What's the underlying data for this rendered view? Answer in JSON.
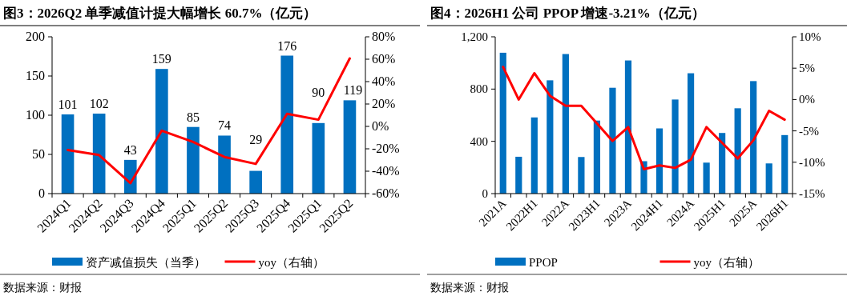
{
  "chart_data": [
    {
      "type": "bar",
      "title": "图3：2026Q2 单季减值计提大幅增长 60.7%（亿元）",
      "categories": [
        "2024Q1",
        "2024Q2",
        "2024Q3",
        "2024Q4",
        "2025Q1",
        "2025Q2",
        "2025Q3",
        "2025Q4",
        "2025Q1",
        "2025Q2"
      ],
      "series": [
        {
          "name": "资产减值损失（当季）",
          "color": "#0070c0",
          "values": [
            101,
            102,
            43,
            159,
            85,
            74,
            29,
            176,
            90,
            119
          ],
          "value_labels": [
            "101",
            "102",
            "43",
            "159",
            "85",
            "74",
            "29",
            "176",
            "90",
            "119"
          ]
        },
        {
          "name": "yoy（右轴）",
          "type": "line",
          "axis": "y2",
          "color": "#ff0000",
          "values": [
            -21,
            -25.6,
            -50.7,
            -3.8,
            -13.9,
            -27.3,
            -33.5,
            11.2,
            6,
            60.7
          ]
        }
      ],
      "ylim": [
        0,
        200
      ],
      "yticks": [
        0,
        50,
        100,
        150,
        200
      ],
      "y2lim": [
        -60,
        80
      ],
      "y2ticks": [
        {
          "value": -60,
          "label": "-60%"
        },
        {
          "value": -40,
          "label": "-40%"
        },
        {
          "value": -20,
          "label": "-20%"
        },
        {
          "value": 0,
          "label": "0%"
        },
        {
          "value": 20,
          "label": "20%"
        },
        {
          "value": 40,
          "label": "40%"
        },
        {
          "value": 60,
          "label": "60%"
        },
        {
          "value": 80,
          "label": "80%"
        }
      ],
      "legend": "bottom",
      "annotations": [
        "数据来源：财报"
      ]
    },
    {
      "type": "bar",
      "title": "图4：2026H1 公司 PPOP 增速-3.21%（亿元）",
      "categories": [
        "2021A",
        null,
        "2022H1",
        null,
        "2022A",
        null,
        "2023H1",
        null,
        "2023A",
        null,
        "2024H1",
        null,
        "2024A",
        null,
        "2025H1",
        null,
        "2025A",
        null,
        "2026H1"
      ],
      "series": [
        {
          "name": "PPOP",
          "color": "#0070c0",
          "values": [
            1078,
            282,
            583,
            867,
            1068,
            280,
            559,
            810,
            1019,
            248,
            499,
            720,
            921,
            237,
            464,
            653,
            861,
            231,
            448
          ]
        },
        {
          "name": "yoy（右轴）",
          "type": "line",
          "axis": "y2",
          "color": "#ff0000",
          "values": [
            5.2,
            0,
            4.2,
            0.6,
            -1,
            -1,
            -3.8,
            -6.6,
            -4.4,
            -11.1,
            -10.5,
            -10.9,
            -9.6,
            -4.4,
            -6.9,
            -9.4,
            -6.5,
            -1.8,
            -3.21
          ]
        }
      ],
      "ylim": [
        0,
        1200
      ],
      "yticks": [
        0,
        {
          "value": 400,
          "label": "400"
        },
        {
          "value": 800,
          "label": "800"
        },
        {
          "value": 1200,
          "label": "1,200"
        }
      ],
      "y2lim": [
        -15,
        10
      ],
      "y2ticks": [
        {
          "value": -15,
          "label": "-15%"
        },
        {
          "value": -10,
          "label": "-10%"
        },
        {
          "value": -5,
          "label": "-5%"
        },
        {
          "value": 0,
          "label": "0%"
        },
        {
          "value": 5,
          "label": "5%"
        },
        {
          "value": 10,
          "label": "10%"
        }
      ],
      "legend": "bottom",
      "annotations": [
        "数据来源：财报"
      ]
    }
  ]
}
